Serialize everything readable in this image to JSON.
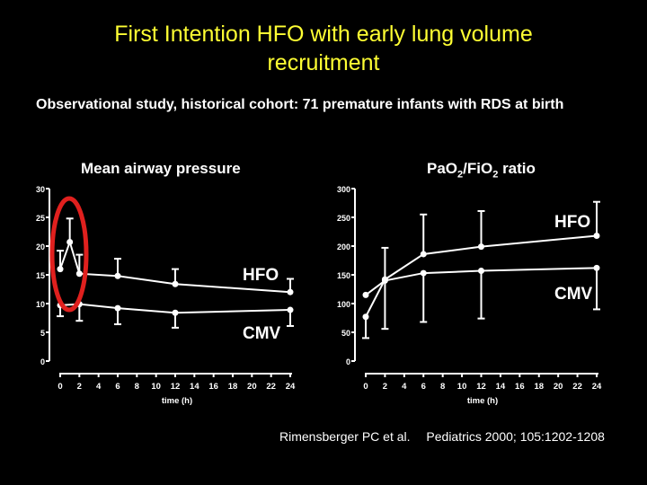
{
  "slide": {
    "title_line1": "First Intention HFO with early lung volume",
    "title_line2": "recruitment",
    "subtitle": "Observational study, historical cohort: 71 premature infants with RDS at birth",
    "citation_authors": "Rimensberger PC et al.",
    "citation_journal": "Pediatrics 2000; 105:1202-1208",
    "colors": {
      "title": "#ffff33",
      "text": "#ffffff",
      "background": "#000000",
      "highlight_ellipse": "#e0201e"
    }
  },
  "chart_data": [
    {
      "type": "line",
      "title": "Mean airway pressure",
      "xlabel": "time (h)",
      "ylabel": "",
      "xlim": [
        0,
        24
      ],
      "ylim": [
        0,
        30
      ],
      "xticks": [
        0,
        2,
        4,
        6,
        8,
        10,
        12,
        14,
        16,
        18,
        20,
        22,
        24
      ],
      "yticks": [
        0,
        5,
        10,
        15,
        20,
        25,
        30
      ],
      "grid": false,
      "annotations": [
        "HFO",
        "CMV",
        "red ellipse highlighting early HFO recruitment (0-2 h)"
      ],
      "series": [
        {
          "name": "HFO",
          "x": [
            0,
            1,
            2,
            6,
            12,
            24
          ],
          "values": [
            16,
            20.7,
            15.2,
            14.8,
            13.4,
            12
          ],
          "error_upper": [
            19.2,
            24.8,
            18.5,
            17.8,
            16,
            14.3
          ]
        },
        {
          "name": "CMV",
          "x": [
            0,
            2,
            6,
            12,
            24
          ],
          "values": [
            9.7,
            9.9,
            9.2,
            8.4,
            8.9
          ],
          "error_lower": [
            7.8,
            7,
            6.4,
            5.8,
            6.1
          ]
        }
      ]
    },
    {
      "type": "line",
      "title": "PaO2/FiO2 ratio",
      "xlabel": "time (h)",
      "ylabel": "",
      "xlim": [
        0,
        24
      ],
      "ylim": [
        0,
        300
      ],
      "xticks": [
        0,
        2,
        4,
        6,
        8,
        10,
        12,
        14,
        16,
        18,
        20,
        22,
        24
      ],
      "yticks": [
        0,
        50,
        100,
        150,
        200,
        250,
        300
      ],
      "grid": false,
      "annotations": [
        "HFO",
        "CMV"
      ],
      "series": [
        {
          "name": "HFO",
          "x": [
            0,
            2,
            6,
            12,
            24
          ],
          "values": [
            77,
            142,
            186,
            199,
            218
          ],
          "error_upper": [
            null,
            197,
            255,
            261,
            277
          ],
          "error_lower": [
            40,
            null,
            null,
            null,
            null
          ]
        },
        {
          "name": "CMV",
          "x": [
            0,
            2,
            6,
            12,
            24
          ],
          "values": [
            115,
            140,
            153,
            157,
            162
          ],
          "error_lower": [
            null,
            56,
            68,
            74,
            90
          ]
        }
      ]
    }
  ],
  "left_chart": {
    "title": "Mean airway pressure",
    "xlabel": "time (h)",
    "label_hfo": "HFO",
    "label_cmv": "CMV"
  },
  "right_chart": {
    "title_main": "PaO",
    "title_sub1": "2",
    "title_mid": "/FiO",
    "title_sub2": "2",
    "title_end": " ratio",
    "xlabel": "time (h)",
    "label_hfo": "HFO",
    "label_cmv": "CMV"
  }
}
